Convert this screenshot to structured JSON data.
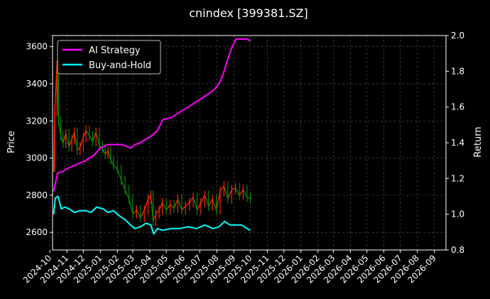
{
  "chart_data": {
    "type": "line",
    "title": "cnindex [399381.SZ]",
    "ylabel_left": "Price",
    "ylabel_right": "Return",
    "xlabel": "",
    "ylim_left": [
      2505,
      3660
    ],
    "ylim_right": [
      0.8,
      2.0
    ],
    "yticks_left": [
      2600,
      2800,
      3000,
      3200,
      3400,
      3600
    ],
    "yticks_right": [
      0.8,
      1.0,
      1.2,
      1.4,
      1.6,
      1.8,
      2.0
    ],
    "xticks": [
      "2024-10",
      "2024-11",
      "2024-12",
      "2025-01",
      "2025-02",
      "2025-03",
      "2025-04",
      "2025-05",
      "2025-06",
      "2025-07",
      "2025-08",
      "2025-09",
      "2025-10",
      "2025-11",
      "2025-12",
      "2026-01",
      "2026-02",
      "2026-03",
      "2026-04",
      "2026-05",
      "2026-06",
      "2026-07",
      "2026-08",
      "2026-09"
    ],
    "grid": true,
    "legend_position": "top-left",
    "legend": [
      "AI Strategy",
      "Buy-and-Hold"
    ],
    "colors": {
      "background": "#000000",
      "ai_strategy": "#ff00ff",
      "buy_and_hold": "#00ffff",
      "candle_up": "#ff2200",
      "candle_down": "#008800",
      "grid": "#555555",
      "text": "#ffffff"
    },
    "series": [
      {
        "name": "AI Strategy",
        "axis": "right",
        "x": [
          "2024-10-08",
          "2024-10-15",
          "2024-10-25",
          "2024-11-05",
          "2024-11-20",
          "2024-12-05",
          "2024-12-20",
          "2025-01-01",
          "2025-01-15",
          "2025-01-27",
          "2025-02-10",
          "2025-02-25",
          "2025-03-05",
          "2025-03-15",
          "2025-03-25",
          "2025-04-05",
          "2025-04-15",
          "2025-04-25",
          "2025-05-10",
          "2025-05-25",
          "2025-06-10",
          "2025-06-25",
          "2025-07-10",
          "2025-07-20",
          "2025-07-28",
          "2025-08-05",
          "2025-08-12",
          "2025-08-20",
          "2025-08-28",
          "2025-09-05",
          "2025-09-15",
          "2025-09-25",
          "2025-10-01"
        ],
        "values": [
          1.13,
          1.23,
          1.24,
          1.26,
          1.28,
          1.3,
          1.33,
          1.37,
          1.39,
          1.39,
          1.39,
          1.37,
          1.39,
          1.4,
          1.42,
          1.44,
          1.47,
          1.53,
          1.54,
          1.57,
          1.6,
          1.63,
          1.66,
          1.68,
          1.7,
          1.73,
          1.78,
          1.86,
          1.93,
          1.98,
          1.98,
          1.98,
          1.97
        ]
      },
      {
        "name": "Buy-and-Hold",
        "axis": "right",
        "x": [
          "2024-10-08",
          "2024-10-11",
          "2024-10-16",
          "2024-10-22",
          "2024-10-28",
          "2024-11-05",
          "2024-11-15",
          "2024-11-25",
          "2024-12-05",
          "2024-12-15",
          "2024-12-25",
          "2025-01-06",
          "2025-01-15",
          "2025-01-25",
          "2025-02-05",
          "2025-02-15",
          "2025-02-25",
          "2025-03-05",
          "2025-03-15",
          "2025-03-25",
          "2025-04-03",
          "2025-04-08",
          "2025-04-15",
          "2025-04-25",
          "2025-05-10",
          "2025-05-25",
          "2025-06-10",
          "2025-06-25",
          "2025-07-10",
          "2025-07-25",
          "2025-08-05",
          "2025-08-15",
          "2025-08-25",
          "2025-09-05",
          "2025-09-15",
          "2025-09-25",
          "2025-10-01"
        ],
        "values": [
          1.0,
          1.09,
          1.1,
          1.03,
          1.04,
          1.03,
          1.01,
          1.02,
          1.02,
          1.01,
          1.04,
          1.03,
          1.01,
          1.02,
          0.99,
          0.97,
          0.94,
          0.92,
          0.93,
          0.95,
          0.94,
          0.89,
          0.92,
          0.91,
          0.92,
          0.92,
          0.93,
          0.92,
          0.94,
          0.92,
          0.93,
          0.96,
          0.94,
          0.94,
          0.94,
          0.92,
          0.91
        ]
      },
      {
        "name": "Price",
        "axis": "left",
        "x": [
          "2024-10-08",
          "2024-10-10",
          "2024-10-14",
          "2024-10-17",
          "2024-10-21",
          "2024-10-25",
          "2024-10-30",
          "2024-11-05",
          "2024-11-10",
          "2024-11-15",
          "2024-11-20",
          "2024-11-25",
          "2024-12-01",
          "2024-12-06",
          "2024-12-12",
          "2024-12-18",
          "2024-12-24",
          "2024-12-30",
          "2025-01-05",
          "2025-01-10",
          "2025-01-15",
          "2025-01-20",
          "2025-01-25",
          "2025-02-01",
          "2025-02-08",
          "2025-02-15",
          "2025-02-22",
          "2025-03-01",
          "2025-03-08",
          "2025-03-15",
          "2025-03-22",
          "2025-03-29",
          "2025-04-03",
          "2025-04-07",
          "2025-04-12",
          "2025-04-18",
          "2025-04-24",
          "2025-05-01",
          "2025-05-08",
          "2025-05-15",
          "2025-05-22",
          "2025-05-29",
          "2025-06-05",
          "2025-06-12",
          "2025-06-19",
          "2025-06-26",
          "2025-07-03",
          "2025-07-10",
          "2025-07-17",
          "2025-07-24",
          "2025-07-31",
          "2025-08-07",
          "2025-08-14",
          "2025-08-21",
          "2025-08-28",
          "2025-09-04",
          "2025-09-11",
          "2025-09-18",
          "2025-09-25",
          "2025-10-01"
        ],
        "values": [
          2950,
          3250,
          3500,
          3200,
          3120,
          3080,
          3130,
          3060,
          3100,
          3140,
          3040,
          3060,
          3110,
          3150,
          3120,
          3090,
          3140,
          3070,
          3050,
          3020,
          3040,
          2990,
          2960,
          2940,
          2880,
          2830,
          2780,
          2700,
          2720,
          2680,
          2720,
          2780,
          2800,
          2660,
          2700,
          2720,
          2760,
          2720,
          2750,
          2730,
          2780,
          2720,
          2740,
          2760,
          2790,
          2720,
          2760,
          2800,
          2740,
          2780,
          2720,
          2820,
          2850,
          2780,
          2830,
          2840,
          2800,
          2830,
          2790,
          2780
        ]
      }
    ]
  }
}
